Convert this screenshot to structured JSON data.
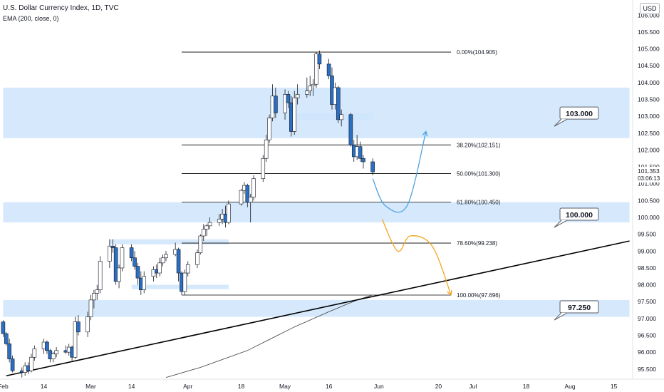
{
  "header": {
    "title": "U.S. Dollar Currency Index, 1D, TVC",
    "indicator": "EMA (200, close, 0)",
    "currency": "USD"
  },
  "colors": {
    "zone_fill": "#cfe5fb",
    "candle_up_fill": "#ffffff",
    "candle_down_fill": "#2a6fc4",
    "candle_outline": "#131722",
    "fib_line": "#000000",
    "arrow_blue": "#4da3e0",
    "arrow_orange": "#f5a623",
    "trendline": "#000000",
    "ema_line": "#3c3c3c"
  },
  "chart_data": {
    "type": "candlestick",
    "symbol": "U.S. Dollar Currency Index",
    "interval": "1D",
    "xlim": [
      "2022-02-01",
      "2022-08-20"
    ],
    "ylim": [
      95.2,
      106.45
    ],
    "price_ticks": [
      {
        "label": "95.500",
        "value": 95.5
      },
      {
        "label": "96.000",
        "value": 96.0
      },
      {
        "label": "96.500",
        "value": 96.5
      },
      {
        "label": "97.000",
        "value": 97.0
      },
      {
        "label": "97.500",
        "value": 97.5
      },
      {
        "label": "98.000",
        "value": 98.0
      },
      {
        "label": "98.500",
        "value": 98.5
      },
      {
        "label": "99.000",
        "value": 99.0
      },
      {
        "label": "99.500",
        "value": 99.5
      },
      {
        "label": "100.000",
        "value": 100.0
      },
      {
        "label": "100.500",
        "value": 100.5
      },
      {
        "label": "101.000",
        "value": 101.0
      },
      {
        "label": "101.500",
        "value": 101.5
      },
      {
        "label": "102.000",
        "value": 102.0
      },
      {
        "label": "102.500",
        "value": 102.5
      },
      {
        "label": "103.000",
        "value": 103.0
      },
      {
        "label": "103.500",
        "value": 103.5
      },
      {
        "label": "104.000",
        "value": 104.0
      },
      {
        "label": "104.500",
        "value": 104.5
      },
      {
        "label": "105.000",
        "value": 105.0
      },
      {
        "label": "105.500",
        "value": 105.5
      },
      {
        "label": "106.000",
        "value": 106.0
      }
    ],
    "last_price": {
      "value": 101.353,
      "label": "101.353",
      "countdown": "03:06:13"
    },
    "time_ticks": [
      {
        "label": "Feb",
        "date": "2022-02-01"
      },
      {
        "label": "14",
        "date": "2022-02-14"
      },
      {
        "label": "Mar",
        "date": "2022-03-01"
      },
      {
        "label": "14",
        "date": "2022-03-14"
      },
      {
        "label": "Apr",
        "date": "2022-04-01"
      },
      {
        "label": "18",
        "date": "2022-04-18"
      },
      {
        "label": "May",
        "date": "2022-05-02"
      },
      {
        "label": "16",
        "date": "2022-05-16"
      },
      {
        "label": "Jun",
        "date": "2022-06-01"
      },
      {
        "label": "20",
        "date": "2022-06-20"
      },
      {
        "label": "Jul",
        "date": "2022-07-01"
      },
      {
        "label": "18",
        "date": "2022-07-18"
      },
      {
        "label": "Aug",
        "date": "2022-08-01"
      },
      {
        "label": "15",
        "date": "2022-08-15"
      }
    ],
    "candles": [
      {
        "date": "2022-02-01",
        "open": 96.9,
        "high": 96.95,
        "low": 96.45,
        "close": 96.55
      },
      {
        "date": "2022-02-02",
        "open": 96.55,
        "high": 96.6,
        "low": 96.2,
        "close": 96.25
      },
      {
        "date": "2022-02-03",
        "open": 96.25,
        "high": 96.4,
        "low": 95.7,
        "close": 95.8
      },
      {
        "date": "2022-02-04",
        "open": 95.8,
        "high": 95.9,
        "low": 95.4,
        "close": 95.45
      },
      {
        "date": "2022-02-07",
        "open": 95.45,
        "high": 95.55,
        "low": 95.25,
        "close": 95.4
      },
      {
        "date": "2022-02-08",
        "open": 95.4,
        "high": 95.7,
        "low": 95.3,
        "close": 95.6
      },
      {
        "date": "2022-02-09",
        "open": 95.6,
        "high": 95.7,
        "low": 95.35,
        "close": 95.45
      },
      {
        "date": "2022-02-10",
        "open": 95.45,
        "high": 95.95,
        "low": 95.4,
        "close": 95.85
      },
      {
        "date": "2022-02-11",
        "open": 95.85,
        "high": 96.2,
        "low": 95.75,
        "close": 96.1
      },
      {
        "date": "2022-02-14",
        "open": 96.1,
        "high": 96.4,
        "low": 95.95,
        "close": 96.3
      },
      {
        "date": "2022-02-15",
        "open": 96.3,
        "high": 96.35,
        "low": 95.95,
        "close": 96.05
      },
      {
        "date": "2022-02-16",
        "open": 96.05,
        "high": 96.1,
        "low": 95.7,
        "close": 95.8
      },
      {
        "date": "2022-02-17",
        "open": 95.8,
        "high": 96.0,
        "low": 95.7,
        "close": 95.95
      },
      {
        "date": "2022-02-18",
        "open": 95.95,
        "high": 96.15,
        "low": 95.85,
        "close": 96.05
      },
      {
        "date": "2022-02-21",
        "open": 96.05,
        "high": 96.2,
        "low": 95.95,
        "close": 96.0
      },
      {
        "date": "2022-02-22",
        "open": 96.0,
        "high": 96.25,
        "low": 95.9,
        "close": 96.15
      },
      {
        "date": "2022-02-23",
        "open": 96.15,
        "high": 96.2,
        "low": 95.75,
        "close": 95.85
      },
      {
        "date": "2022-02-24",
        "open": 95.85,
        "high": 97.05,
        "low": 95.8,
        "close": 96.9
      },
      {
        "date": "2022-02-25",
        "open": 96.9,
        "high": 97.1,
        "low": 96.5,
        "close": 96.6
      },
      {
        "date": "2022-02-28",
        "open": 96.6,
        "high": 97.2,
        "low": 96.45,
        "close": 97.05
      },
      {
        "date": "2022-03-01",
        "open": 97.05,
        "high": 97.7,
        "low": 96.95,
        "close": 97.55
      },
      {
        "date": "2022-03-02",
        "open": 97.55,
        "high": 97.85,
        "low": 97.3,
        "close": 97.75
      },
      {
        "date": "2022-03-03",
        "open": 97.75,
        "high": 98.0,
        "low": 97.55,
        "close": 97.85
      },
      {
        "date": "2022-03-04",
        "open": 97.85,
        "high": 98.85,
        "low": 97.75,
        "close": 98.7
      },
      {
        "date": "2022-03-07",
        "open": 98.7,
        "high": 99.35,
        "low": 98.5,
        "close": 99.15
      },
      {
        "date": "2022-03-08",
        "open": 99.15,
        "high": 99.35,
        "low": 98.95,
        "close": 99.1
      },
      {
        "date": "2022-03-09",
        "open": 99.1,
        "high": 99.2,
        "low": 98.0,
        "close": 98.1
      },
      {
        "date": "2022-03-10",
        "open": 98.1,
        "high": 98.6,
        "low": 97.9,
        "close": 98.5
      },
      {
        "date": "2022-03-11",
        "open": 98.5,
        "high": 99.2,
        "low": 98.4,
        "close": 99.1
      },
      {
        "date": "2022-03-14",
        "open": 99.1,
        "high": 99.2,
        "low": 98.7,
        "close": 98.8
      },
      {
        "date": "2022-03-15",
        "open": 98.8,
        "high": 99.0,
        "low": 98.45,
        "close": 98.55
      },
      {
        "date": "2022-03-16",
        "open": 98.55,
        "high": 98.65,
        "low": 98.0,
        "close": 98.2
      },
      {
        "date": "2022-03-17",
        "open": 98.2,
        "high": 98.4,
        "low": 97.7,
        "close": 97.85
      },
      {
        "date": "2022-03-18",
        "open": 97.85,
        "high": 98.4,
        "low": 97.75,
        "close": 98.25
      },
      {
        "date": "2022-03-21",
        "open": 98.25,
        "high": 98.55,
        "low": 98.1,
        "close": 98.45
      },
      {
        "date": "2022-03-22",
        "open": 98.45,
        "high": 98.6,
        "low": 98.2,
        "close": 98.35
      },
      {
        "date": "2022-03-23",
        "open": 98.35,
        "high": 98.8,
        "low": 98.25,
        "close": 98.65
      },
      {
        "date": "2022-03-24",
        "open": 98.65,
        "high": 98.9,
        "low": 98.55,
        "close": 98.8
      },
      {
        "date": "2022-03-25",
        "open": 98.8,
        "high": 99.0,
        "low": 98.7,
        "close": 98.9
      },
      {
        "date": "2022-03-28",
        "open": 98.9,
        "high": 99.25,
        "low": 98.85,
        "close": 99.05
      },
      {
        "date": "2022-03-29",
        "open": 99.05,
        "high": 99.1,
        "low": 98.1,
        "close": 98.35
      },
      {
        "date": "2022-03-30",
        "open": 98.35,
        "high": 98.4,
        "low": 97.7,
        "close": 97.8
      },
      {
        "date": "2022-03-31",
        "open": 97.8,
        "high": 98.45,
        "low": 97.7,
        "close": 98.35
      },
      {
        "date": "2022-04-01",
        "open": 98.35,
        "high": 98.7,
        "low": 98.25,
        "close": 98.6
      },
      {
        "date": "2022-04-04",
        "open": 98.6,
        "high": 99.05,
        "low": 98.5,
        "close": 98.95
      },
      {
        "date": "2022-04-05",
        "open": 98.95,
        "high": 99.5,
        "low": 98.9,
        "close": 99.45
      },
      {
        "date": "2022-04-06",
        "open": 99.45,
        "high": 99.8,
        "low": 99.3,
        "close": 99.65
      },
      {
        "date": "2022-04-07",
        "open": 99.65,
        "high": 99.8,
        "low": 99.45,
        "close": 99.75
      },
      {
        "date": "2022-04-08",
        "open": 99.75,
        "high": 100.0,
        "low": 99.65,
        "close": 99.85
      },
      {
        "date": "2022-04-11",
        "open": 99.85,
        "high": 100.1,
        "low": 99.75,
        "close": 99.95
      },
      {
        "date": "2022-04-12",
        "open": 99.95,
        "high": 100.25,
        "low": 99.8,
        "close": 100.1
      },
      {
        "date": "2022-04-13",
        "open": 100.1,
        "high": 100.35,
        "low": 99.7,
        "close": 99.85
      },
      {
        "date": "2022-04-14",
        "open": 99.85,
        "high": 100.5,
        "low": 99.8,
        "close": 100.4
      },
      {
        "date": "2022-04-18",
        "open": 100.4,
        "high": 100.85,
        "low": 100.35,
        "close": 100.8
      },
      {
        "date": "2022-04-19",
        "open": 100.8,
        "high": 101.05,
        "low": 100.7,
        "close": 100.95
      },
      {
        "date": "2022-04-20",
        "open": 100.95,
        "high": 101.0,
        "low": 100.3,
        "close": 100.45
      },
      {
        "date": "2022-04-21",
        "open": 100.45,
        "high": 100.7,
        "low": 99.85,
        "close": 100.6
      },
      {
        "date": "2022-04-22",
        "open": 100.6,
        "high": 101.25,
        "low": 100.5,
        "close": 101.15
      },
      {
        "date": "2022-04-25",
        "open": 101.15,
        "high": 101.85,
        "low": 101.05,
        "close": 101.75
      },
      {
        "date": "2022-04-26",
        "open": 101.75,
        "high": 102.45,
        "low": 101.65,
        "close": 102.3
      },
      {
        "date": "2022-04-27",
        "open": 102.3,
        "high": 103.05,
        "low": 102.2,
        "close": 102.95
      },
      {
        "date": "2022-04-28",
        "open": 102.95,
        "high": 103.95,
        "low": 102.85,
        "close": 103.6
      },
      {
        "date": "2022-04-29",
        "open": 103.6,
        "high": 103.85,
        "low": 102.95,
        "close": 103.1
      },
      {
        "date": "2022-05-02",
        "open": 103.1,
        "high": 103.8,
        "low": 102.9,
        "close": 103.65
      },
      {
        "date": "2022-05-03",
        "open": 103.65,
        "high": 103.75,
        "low": 103.25,
        "close": 103.4
      },
      {
        "date": "2022-05-04",
        "open": 103.4,
        "high": 103.6,
        "low": 102.4,
        "close": 102.55
      },
      {
        "date": "2022-05-05",
        "open": 102.55,
        "high": 103.75,
        "low": 102.45,
        "close": 103.55
      },
      {
        "date": "2022-05-06",
        "open": 103.55,
        "high": 103.95,
        "low": 103.35,
        "close": 103.65
      },
      {
        "date": "2022-05-09",
        "open": 103.65,
        "high": 104.15,
        "low": 103.55,
        "close": 103.75
      },
      {
        "date": "2022-05-10",
        "open": 103.75,
        "high": 104.2,
        "low": 103.6,
        "close": 103.9
      },
      {
        "date": "2022-05-11",
        "open": 103.9,
        "high": 104.1,
        "low": 103.6,
        "close": 103.95
      },
      {
        "date": "2022-05-12",
        "open": 103.95,
        "high": 104.9,
        "low": 103.85,
        "close": 104.85
      },
      {
        "date": "2022-05-13",
        "open": 104.85,
        "high": 104.95,
        "low": 104.4,
        "close": 104.55
      },
      {
        "date": "2022-05-16",
        "open": 104.55,
        "high": 104.7,
        "low": 104.1,
        "close": 104.2
      },
      {
        "date": "2022-05-17",
        "open": 104.2,
        "high": 104.45,
        "low": 103.2,
        "close": 103.35
      },
      {
        "date": "2022-05-18",
        "open": 103.35,
        "high": 104.0,
        "low": 103.2,
        "close": 103.85
      },
      {
        "date": "2022-05-19",
        "open": 103.85,
        "high": 103.9,
        "low": 102.8,
        "close": 102.9
      },
      {
        "date": "2022-05-20",
        "open": 102.9,
        "high": 103.2,
        "low": 102.7,
        "close": 103.05
      },
      {
        "date": "2022-05-23",
        "open": 103.05,
        "high": 103.1,
        "low": 102.1,
        "close": 102.15
      },
      {
        "date": "2022-05-24",
        "open": 102.15,
        "high": 102.3,
        "low": 101.65,
        "close": 101.8
      },
      {
        "date": "2022-05-25",
        "open": 101.8,
        "high": 102.45,
        "low": 101.7,
        "close": 102.1
      },
      {
        "date": "2022-05-26",
        "open": 102.1,
        "high": 102.25,
        "low": 101.65,
        "close": 101.75
      },
      {
        "date": "2022-05-27",
        "open": 101.75,
        "high": 101.85,
        "low": 101.45,
        "close": 101.65
      },
      {
        "date": "2022-05-30",
        "open": 101.65,
        "high": 101.75,
        "low": 101.25,
        "close": 101.35
      }
    ],
    "fibonacci_levels": [
      {
        "label": "0.00%(104.905)",
        "value": 104.905
      },
      {
        "label": "38.20%(102.151)",
        "value": 102.151
      },
      {
        "label": "50.00%(101.300)",
        "value": 101.3
      },
      {
        "label": "61.80%(100.450)",
        "value": 100.45
      },
      {
        "label": "78.60%(99.238)",
        "value": 99.238
      },
      {
        "label": "100.00%(97.696)",
        "value": 97.696
      }
    ],
    "fibonacci_start": "2022-03-30",
    "fibonacci_end": "2022-06-24",
    "zones": [
      {
        "from": "2022-02-01",
        "to": "2022-08-20",
        "low": 102.35,
        "high": 103.85
      },
      {
        "from": "2022-02-01",
        "to": "2022-08-20",
        "low": 99.85,
        "high": 100.45
      },
      {
        "from": "2022-02-01",
        "to": "2022-08-20",
        "low": 97.05,
        "high": 97.55
      },
      {
        "from": "2022-05-04",
        "to": "2022-05-30",
        "low": 102.9,
        "high": 103.1
      },
      {
        "from": "2022-03-07",
        "to": "2022-04-14",
        "low": 99.2,
        "high": 99.35
      },
      {
        "from": "2022-03-14",
        "to": "2022-04-14",
        "low": 97.87,
        "high": 98.0
      }
    ],
    "level_labels": [
      {
        "label": "103.000",
        "value": 103.0
      },
      {
        "label": "100.000",
        "value": 100.0
      },
      {
        "label": "97.250",
        "value": 97.25
      }
    ],
    "trendline": [
      {
        "date": "2022-02-02",
        "value": 95.3
      },
      {
        "date": "2022-08-20",
        "value": 99.3
      }
    ],
    "ema": [
      {
        "date": "2022-03-25",
        "value": 95.25
      },
      {
        "date": "2022-04-05",
        "value": 95.55
      },
      {
        "date": "2022-04-20",
        "value": 96.05
      },
      {
        "date": "2022-05-05",
        "value": 96.75
      },
      {
        "date": "2022-05-16",
        "value": 97.2
      },
      {
        "date": "2022-05-25",
        "value": 97.55
      },
      {
        "date": "2022-05-30",
        "value": 97.7
      }
    ],
    "projections": [
      {
        "color": "arrow_blue",
        "points": [
          {
            "date": "2022-05-30",
            "value": 101.15
          },
          {
            "date": "2022-06-03",
            "value": 100.35
          },
          {
            "date": "2022-06-10",
            "value": 100.35
          },
          {
            "date": "2022-06-16",
            "value": 102.55
          }
        ]
      },
      {
        "color": "arrow_orange",
        "points": [
          {
            "date": "2022-06-02",
            "value": 99.95
          },
          {
            "date": "2022-06-07",
            "value": 99.0
          },
          {
            "date": "2022-06-11",
            "value": 99.45
          },
          {
            "date": "2022-06-18",
            "value": 99.15
          },
          {
            "date": "2022-06-24",
            "value": 97.7
          }
        ]
      }
    ]
  }
}
